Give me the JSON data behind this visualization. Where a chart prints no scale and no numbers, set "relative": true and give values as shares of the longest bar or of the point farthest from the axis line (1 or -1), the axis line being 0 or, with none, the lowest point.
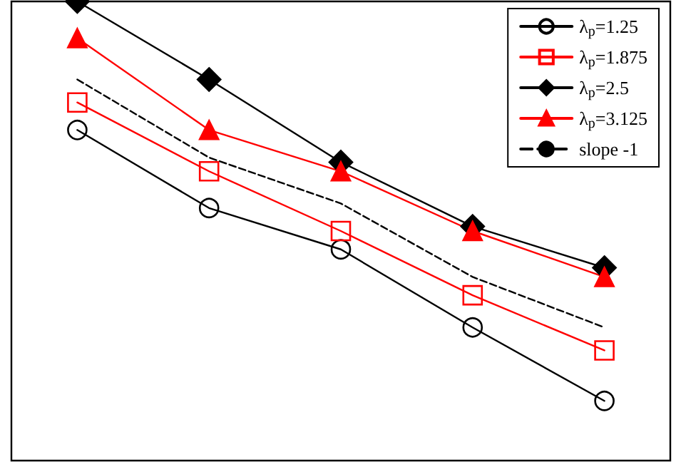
{
  "chart_data": {
    "type": "line",
    "relative": true,
    "categories": [
      null,
      null,
      null,
      null,
      null
    ],
    "legend": "top right",
    "series": [
      {
        "name": "λ$_{p}$=1.25",
        "color": "#000000",
        "marker": "circle",
        "values": [
          0.72,
          0.55,
          0.46,
          0.29,
          0.13
        ]
      },
      {
        "name": "λ$_{p}$=1.875",
        "color": "#ff0000",
        "marker": "square",
        "values": [
          0.78,
          0.63,
          0.5,
          0.36,
          0.24
        ]
      },
      {
        "name": "λ$_{p}$=2.5",
        "color": "#000000",
        "marker": "diamond",
        "values": [
          1,
          0.83,
          0.65,
          0.51,
          0.42
        ]
      },
      {
        "name": "λ$_{p}$=3.125",
        "color": "#ff0000",
        "marker": "triangle",
        "values": [
          0.92,
          0.72,
          0.63,
          0.5,
          0.4
        ]
      },
      {
        "name": "slope -1",
        "color": "#000000",
        "marker": "none",
        "line_style": "dashed",
        "values": [
          0.83,
          0.66,
          0.56,
          0.4,
          0.29
        ]
      }
    ]
  }
}
